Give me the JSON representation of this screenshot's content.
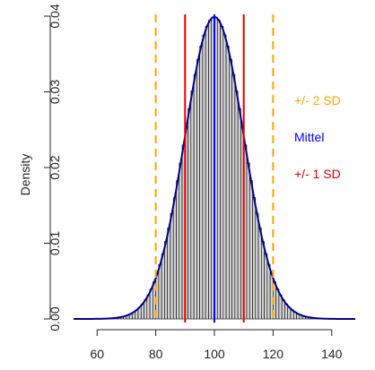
{
  "chart_data": {
    "type": "histogram",
    "title": "",
    "xlabel": "",
    "ylabel": "Density",
    "xlim": [
      48,
      152
    ],
    "ylim": [
      0,
      0.04
    ],
    "x_ticks": [
      60,
      80,
      100,
      120,
      140
    ],
    "y_ticks": [
      0.0,
      0.01,
      0.02,
      0.03,
      0.04
    ],
    "y_tick_labels": [
      "0.00",
      "0.01",
      "0.02",
      "0.03",
      "0.04"
    ],
    "histogram": {
      "bin_width": 1,
      "bin_range": [
        52,
        148
      ],
      "distribution": "normal",
      "mean": 100,
      "sd": 10,
      "fill": "#d3d3d3",
      "edge": "#000000"
    },
    "density_curve": {
      "mean": 100,
      "sd": 10,
      "color": "#00008b"
    },
    "reference_lines": [
      {
        "x": 100,
        "color": "#0000ff",
        "style": "solid",
        "legend": "mean"
      },
      {
        "x": 90,
        "color": "#e00000",
        "style": "solid",
        "legend": "sd1"
      },
      {
        "x": 110,
        "color": "#e00000",
        "style": "solid",
        "legend": "sd1"
      },
      {
        "x": 80,
        "color": "#ffa500",
        "style": "dashed",
        "legend": "sd2"
      },
      {
        "x": 120,
        "color": "#ffa500",
        "style": "dashed",
        "legend": "sd2"
      }
    ],
    "legend": [
      {
        "key": "sd2",
        "label": "+/- 2 SD",
        "color": "#ffa500"
      },
      {
        "key": "mean",
        "label": "Mittel",
        "color": "#0000ff"
      },
      {
        "key": "sd1",
        "label": "+/- 1 SD",
        "color": "#e00000"
      }
    ],
    "legend_position": "right"
  }
}
